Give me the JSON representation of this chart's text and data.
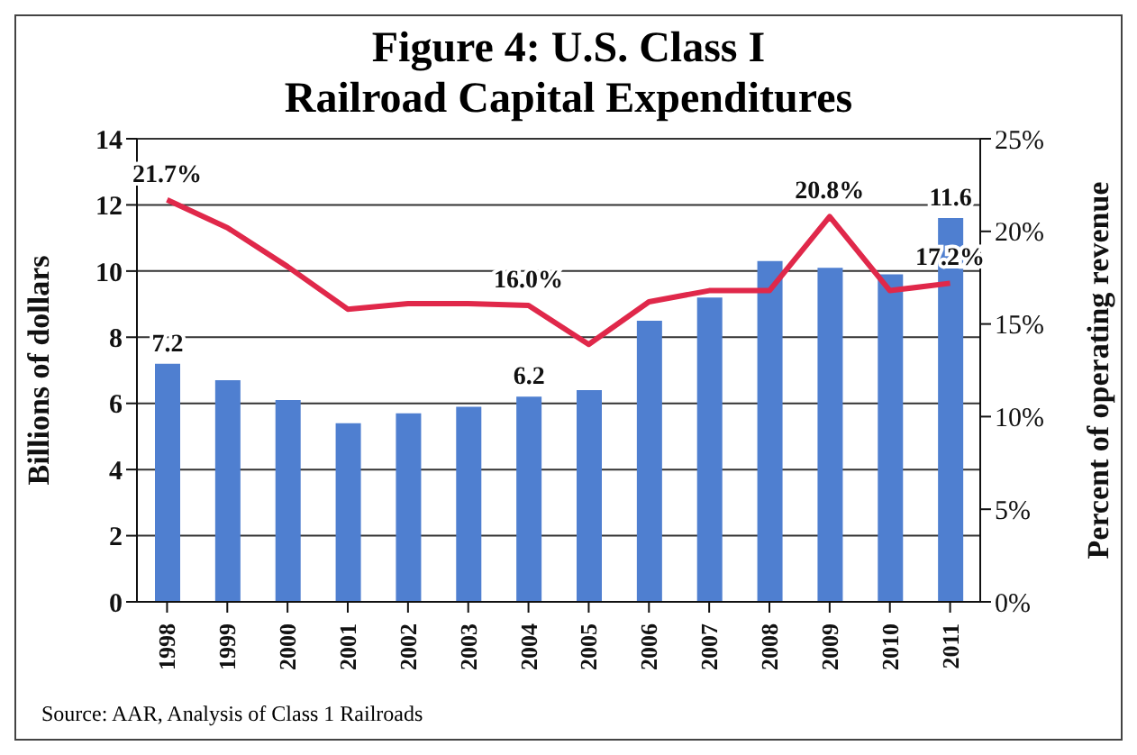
{
  "chart_data": {
    "type": "bar",
    "title": "Figure 4:  U.S. Class I\nRailroad Capital Expenditures",
    "ylabel": "Billions of dollars",
    "y2label": "Percent of operating revenue",
    "categories": [
      "1998",
      "1999",
      "2000",
      "2001",
      "2002",
      "2003",
      "2004",
      "2005",
      "2006",
      "2007",
      "2008",
      "2009",
      "2010",
      "2011"
    ],
    "series": [
      {
        "color": "#4f7fd0",
        "values": [
          7.2,
          6.7,
          6.1,
          5.4,
          5.7,
          5.9,
          6.2,
          6.4,
          8.5,
          9.2,
          10.3,
          10.1,
          9.9,
          11.6
        ],
        "value_labels": [
          "7.2",
          null,
          null,
          null,
          null,
          null,
          "6.2",
          null,
          null,
          null,
          null,
          null,
          null,
          "11.6"
        ]
      },
      {
        "type": "line",
        "axis": "y2",
        "color": "#e0284a",
        "values": [
          21.7,
          20.2,
          18.1,
          15.8,
          16.1,
          16.1,
          16.0,
          13.9,
          16.2,
          16.8,
          16.8,
          20.8,
          16.8,
          17.2
        ],
        "value_labels": [
          "21.7%",
          null,
          null,
          null,
          null,
          null,
          "16.0%",
          null,
          null,
          null,
          null,
          "20.8%",
          null,
          "17.2%"
        ]
      }
    ],
    "ylim": [
      0,
      14
    ],
    "yticks": [
      0,
      2,
      4,
      6,
      8,
      10,
      12,
      14
    ],
    "y2lim": [
      0,
      25
    ],
    "y2ticks": [
      {
        "value": 0,
        "label": "0%"
      },
      {
        "value": 5,
        "label": "5%"
      },
      {
        "value": 10,
        "label": "10%"
      },
      {
        "value": 15,
        "label": "15%"
      },
      {
        "value": 20,
        "label": "20%"
      },
      {
        "value": 25,
        "label": "25%"
      }
    ],
    "grid": "y",
    "legend": false,
    "marker": "none",
    "annotations": [
      "Source:  AAR, Analysis of Class 1 Railroads"
    ]
  }
}
